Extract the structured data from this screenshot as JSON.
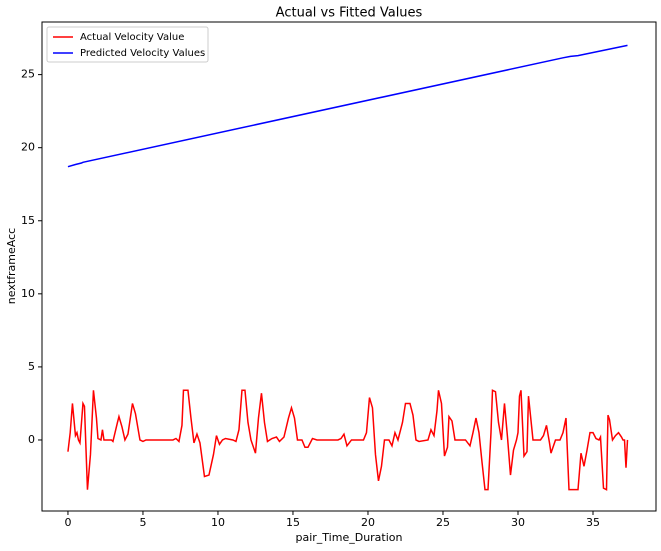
{
  "chart_data": {
    "type": "line",
    "title": "Actual vs Fitted Values",
    "xlabel": "pair_Time_Duration",
    "ylabel": "nextframeAcc",
    "legend": "upper left",
    "xlim": [
      -1.73,
      39.2
    ],
    "ylim": [
      -4.86,
      28.6
    ],
    "xticks": [
      0,
      5,
      10,
      15,
      20,
      25,
      30,
      35
    ],
    "yticks": [
      0,
      5,
      10,
      15,
      20,
      25
    ],
    "series": [
      {
        "name": "Actual Velocity Value",
        "color": "#ff0000",
        "x": [
          0,
          0.15,
          0.3,
          0.5,
          0.6,
          0.7,
          0.8,
          1.0,
          1.1,
          1.3,
          1.5,
          1.7,
          1.9,
          2.0,
          2.2,
          2.3,
          2.4,
          2.9,
          3.0,
          3.3,
          3.4,
          3.6,
          3.8,
          4.0,
          4.3,
          4.5,
          4.8,
          5.0,
          5.2,
          7.0,
          7.2,
          7.4,
          7.6,
          7.7,
          8.0,
          8.2,
          8.4,
          8.6,
          8.8,
          9.1,
          9.4,
          9.7,
          9.9,
          10.1,
          10.3,
          10.5,
          11.0,
          11.2,
          11.4,
          11.6,
          11.8,
          12.0,
          12.2,
          12.5,
          12.7,
          12.9,
          13.1,
          13.3,
          13.6,
          13.9,
          14.1,
          14.4,
          14.7,
          14.9,
          15.1,
          15.3,
          15.6,
          15.8,
          16.0,
          16.3,
          16.6,
          18.0,
          18.2,
          18.4,
          18.6,
          18.9,
          19.7,
          19.9,
          20.1,
          20.3,
          20.5,
          20.7,
          20.9,
          21.1,
          21.4,
          21.6,
          21.8,
          22.0,
          22.3,
          22.5,
          22.8,
          23.0,
          23.2,
          23.4,
          24.0,
          24.2,
          24.4,
          24.6,
          24.7,
          24.9,
          25.1,
          25.3,
          25.4,
          25.6,
          25.8,
          26.0,
          26.5,
          26.8,
          27.0,
          27.2,
          27.4,
          27.6,
          27.8,
          28.0,
          28.2,
          28.3,
          28.5,
          28.7,
          28.9,
          29.1,
          29.3,
          29.5,
          29.7,
          29.9,
          30.0,
          30.1,
          30.2,
          30.4,
          30.6,
          30.7,
          30.9,
          31.0,
          31.5,
          31.7,
          31.9,
          32.1,
          32.2,
          32.5,
          32.8,
          33.0,
          33.2,
          33.4,
          33.7,
          34.0,
          34.2,
          34.4,
          34.6,
          34.8,
          35.0,
          35.2,
          35.4,
          35.5,
          35.7,
          35.9,
          36.0,
          36.1,
          36.3,
          36.5,
          36.7,
          36.9,
          37.0,
          37.1,
          37.2,
          37.3
        ],
        "values": [
          -0.8,
          0.5,
          2.5,
          0.3,
          0.5,
          0,
          -0.2,
          2.5,
          2.3,
          -3.4,
          -1,
          3.4,
          1.5,
          0.1,
          0,
          0.7,
          0,
          0,
          -0.1,
          1.2,
          1.6,
          0.9,
          0,
          0.4,
          2.5,
          1.8,
          0,
          -0.1,
          0,
          0,
          0.1,
          -0.1,
          1,
          3.4,
          3.4,
          1.5,
          -0.2,
          0.4,
          -0.2,
          -2.5,
          -2.4,
          -1,
          0.3,
          -0.3,
          0,
          0.1,
          0,
          -0.1,
          0.7,
          3.4,
          3.4,
          1.2,
          0,
          -0.9,
          1.5,
          3.2,
          1.2,
          -0.1,
          0.1,
          0.2,
          -0.1,
          0.2,
          1.5,
          2.2,
          1.5,
          0,
          0,
          -0.5,
          -0.5,
          0.1,
          0,
          0,
          0.1,
          0.4,
          -0.4,
          0,
          0,
          0.5,
          2.9,
          2.2,
          -1,
          -2.8,
          -1.8,
          0,
          0,
          -0.4,
          0.5,
          0,
          1.2,
          2.5,
          2.5,
          1.7,
          0,
          -0.1,
          0,
          0.7,
          0.3,
          2,
          3.4,
          2.5,
          -1.1,
          -0.5,
          1.6,
          1.3,
          0,
          0,
          0,
          -0.4,
          0.5,
          1.5,
          0.5,
          -1.5,
          -3.4,
          -3.4,
          0.5,
          3.4,
          3.3,
          1.2,
          0,
          2.5,
          0.2,
          -2.4,
          -0.7,
          0,
          0.5,
          3,
          3.4,
          -1.1,
          -0.8,
          3,
          1,
          0,
          0,
          0.3,
          1,
          -0.2,
          -0.9,
          0,
          0,
          0.5,
          1.5,
          -3.4,
          -3.4,
          -3.4,
          -0.9,
          -1.8,
          -0.7,
          0.5,
          0.5,
          0.1,
          0,
          0.2,
          -3.3,
          -3.4,
          1.7,
          1.4,
          0,
          0.3,
          0.5,
          0.2,
          0,
          0,
          -1.9,
          0
        ]
      },
      {
        "name": "Predicted Velocity Values",
        "color": "#0000ff",
        "x": [
          0,
          0.5,
          0.9,
          1.0,
          33.0,
          33.5,
          34.0,
          37.3
        ],
        "values": [
          18.7,
          18.85,
          18.95,
          19.0,
          26.15,
          26.25,
          26.3,
          27.0
        ]
      }
    ]
  }
}
